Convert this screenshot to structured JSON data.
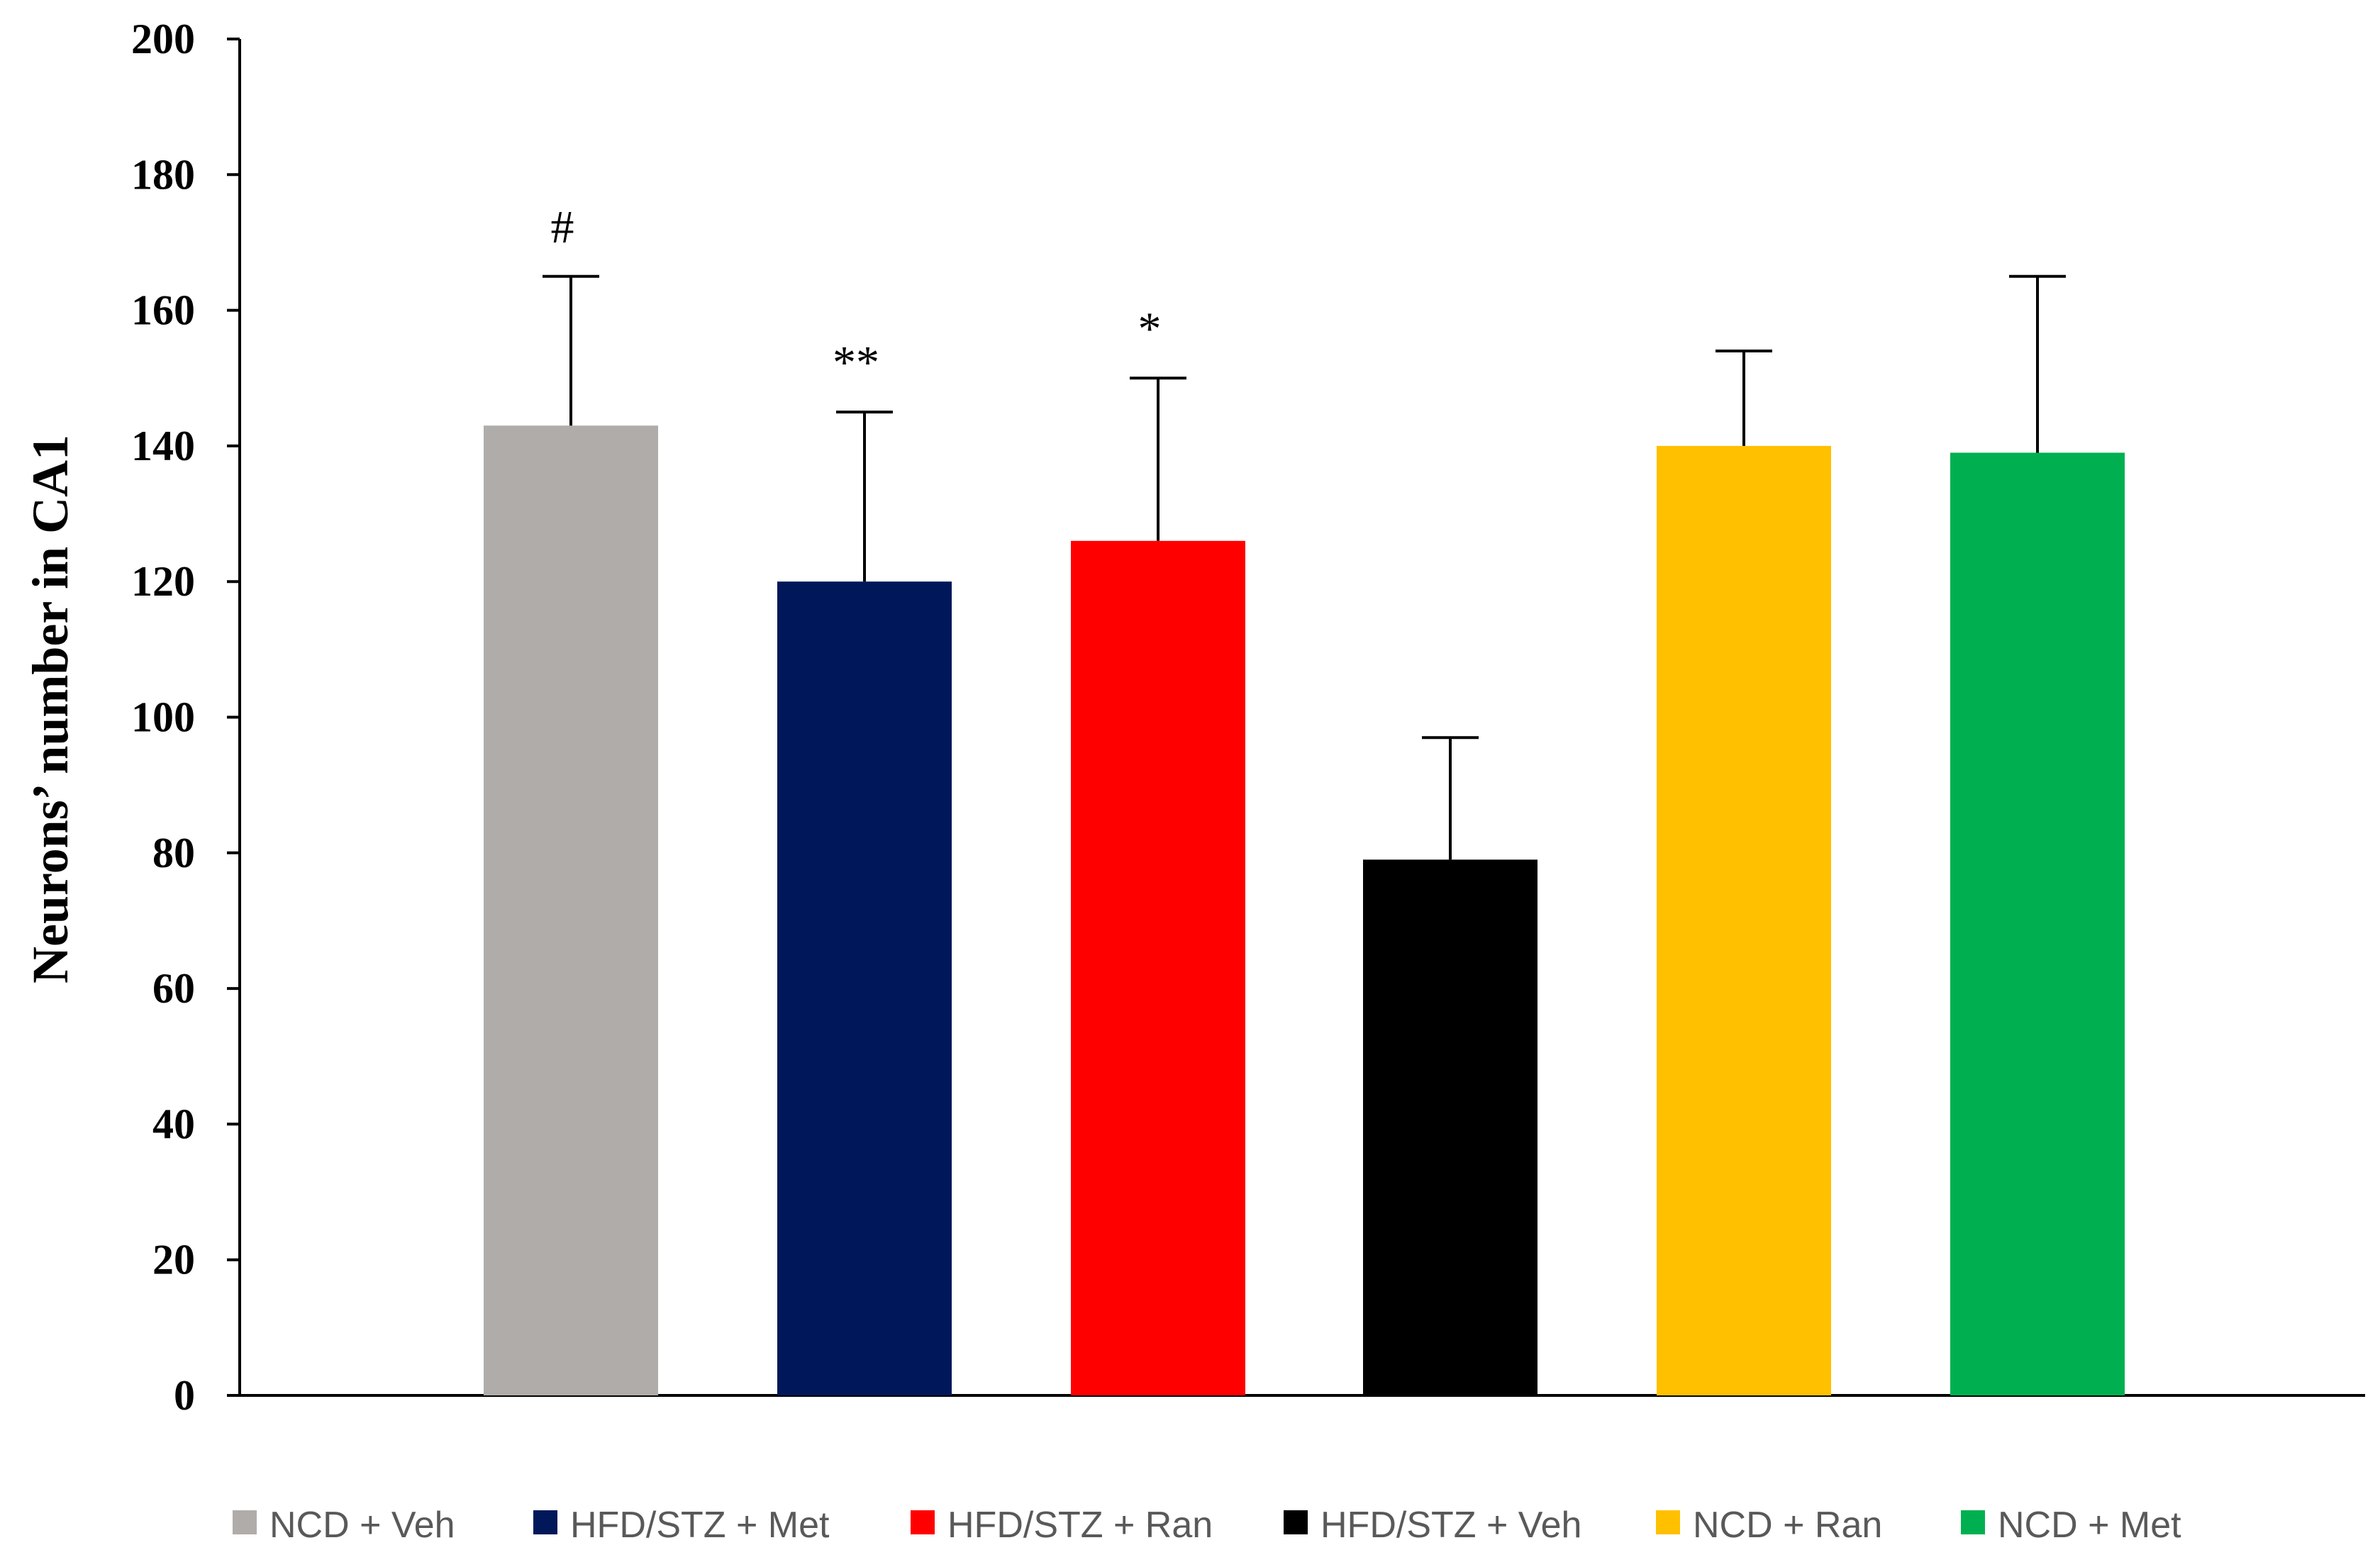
{
  "chart_data": {
    "type": "bar",
    "title": "",
    "xlabel": "",
    "ylabel": "Neurons’ number in CA1",
    "ylim": [
      0,
      200
    ],
    "yticks": [
      0,
      20,
      40,
      60,
      80,
      100,
      120,
      140,
      160,
      180,
      200
    ],
    "grid": false,
    "legend_position": "bottom",
    "categories": [
      "NCD + Veh",
      "HFD/STZ + Met",
      "HFD/STZ + Ran",
      "HFD/STZ + Veh",
      "NCD + Ran",
      "NCD + Met"
    ],
    "values": [
      143,
      120,
      126,
      79,
      140,
      139
    ],
    "error_upper": [
      165,
      145,
      150,
      97,
      154,
      165
    ],
    "annotations": [
      "#",
      "**",
      "*",
      "",
      "",
      ""
    ],
    "colors": [
      "#b0aca9",
      "#00175a",
      "#ff0000",
      "#000000",
      "#ffc000",
      "#00b050"
    ]
  }
}
